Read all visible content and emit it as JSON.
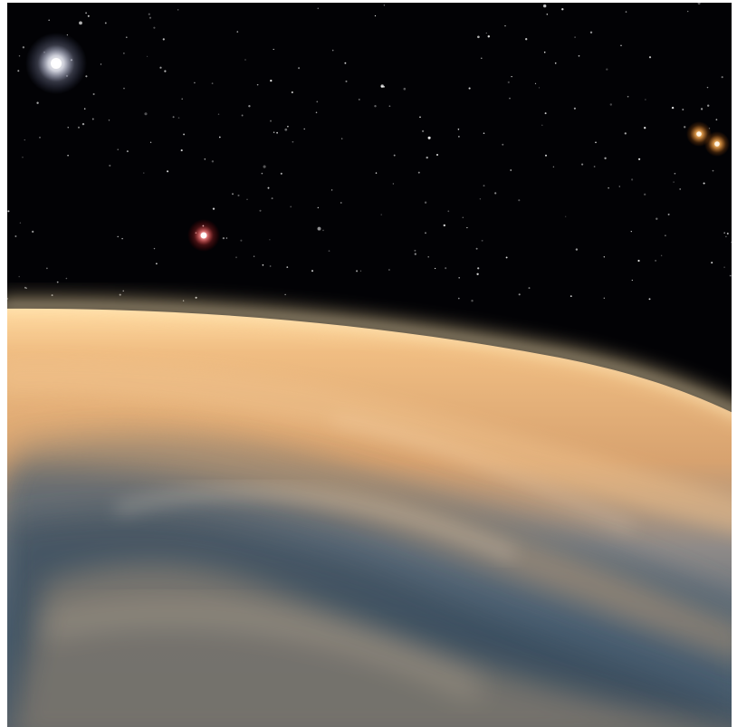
{
  "scene": {
    "subjects": [
      "star-white",
      "star-red",
      "star-orange-pair",
      "planet-horizon",
      "cloud-layer"
    ],
    "colors": {
      "space": "#020205",
      "atmosphere_glow": "#f2c77a",
      "cloud": "#e7b077",
      "ocean": "#3f5a70",
      "star_white": "#ffffff",
      "star_red": "#ff6a6a",
      "star_orange": "#ffb35a"
    }
  }
}
